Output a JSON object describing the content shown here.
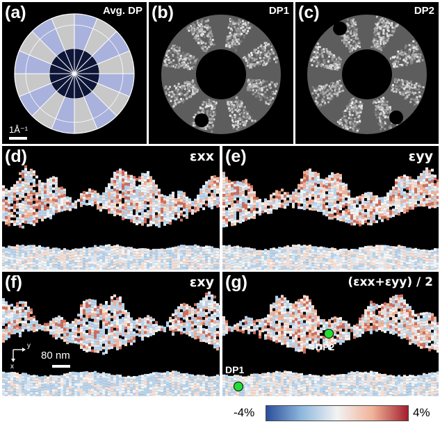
{
  "panels": {
    "a": {
      "label": "(a)",
      "title": "Avg. DP",
      "scale": "1Å⁻¹"
    },
    "b": {
      "label": "(b)",
      "title": "DP1"
    },
    "c": {
      "label": "(c)",
      "title": "DP2"
    },
    "d": {
      "label": "(d)",
      "title": "εxx"
    },
    "e": {
      "label": "(e)",
      "title": "εyy"
    },
    "f": {
      "label": "(f)",
      "title": "εxy",
      "scale": "80 nm",
      "axis_y": "y",
      "axis_x": "x"
    },
    "g": {
      "label": "(g)",
      "title": "(εxx+εyy) / 2",
      "marker1": "DP1",
      "marker2": "DP2"
    }
  },
  "colorbar": {
    "min_label": "-4%",
    "max_label": "4%",
    "colors": [
      "#2a4e9a",
      "#8fb8de",
      "#f3f3f3",
      "#efb39a",
      "#a31f2d"
    ]
  },
  "colors": {
    "marker": "#22dd33",
    "ring_blue": "#a9b2dc"
  }
}
